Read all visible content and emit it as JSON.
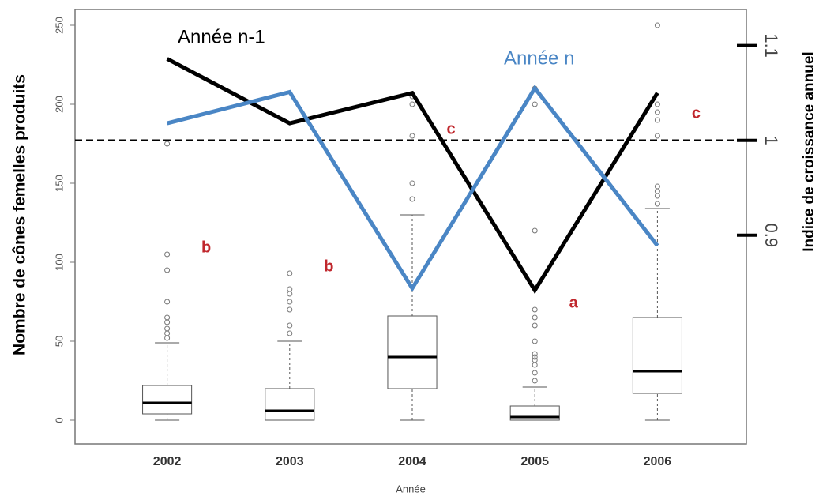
{
  "chart_data": {
    "type": "box",
    "x_label": "Année",
    "y_label": "Nombre de cônes femelles produits",
    "y2_label": "Indice de croissance annuel",
    "categories": [
      "2002",
      "2003",
      "2004",
      "2005",
      "2006"
    ],
    "boxes": [
      {
        "lower": 0,
        "q1": 4,
        "median": 11,
        "q3": 22,
        "upper": 49,
        "outliers": [
          52,
          55,
          58,
          62,
          65,
          75,
          95,
          105,
          175
        ]
      },
      {
        "lower": 0,
        "q1": 0,
        "median": 6,
        "q3": 20,
        "upper": 50,
        "outliers": [
          55,
          60,
          70,
          75,
          80,
          83,
          93
        ]
      },
      {
        "lower": 0,
        "q1": 20,
        "median": 40,
        "q3": 66,
        "upper": 130,
        "outliers": [
          140,
          150,
          180,
          200,
          205
        ]
      },
      {
        "lower": 0,
        "q1": 0,
        "median": 2,
        "q3": 9,
        "upper": 21,
        "outliers": [
          25,
          30,
          35,
          38,
          40,
          42,
          50,
          60,
          65,
          70,
          120,
          200,
          210
        ]
      },
      {
        "lower": 0,
        "q1": 17,
        "median": 31,
        "q3": 65,
        "upper": 134,
        "outliers": [
          137,
          142,
          145,
          148,
          180,
          190,
          195,
          200,
          250
        ]
      }
    ],
    "group_letters": [
      "b",
      "b",
      "c",
      "a",
      "c"
    ],
    "series": [
      {
        "name": "Année n-1",
        "color": "#000000",
        "axis": "y2",
        "values": [
          1.086,
          1.018,
          1.05,
          0.842,
          1.05
        ]
      },
      {
        "name": "Année n",
        "color": "#4a86c5",
        "axis": "y2",
        "values": [
          1.018,
          1.051,
          0.844,
          1.055,
          0.889
        ]
      }
    ],
    "y2_refline": 1,
    "ylim": [
      -15,
      260
    ],
    "yticks": [
      0,
      50,
      100,
      150,
      200,
      250
    ],
    "y2lim": [
      0.68,
      1.138
    ],
    "y2ticks": [
      0.9,
      1,
      1.1
    ]
  }
}
